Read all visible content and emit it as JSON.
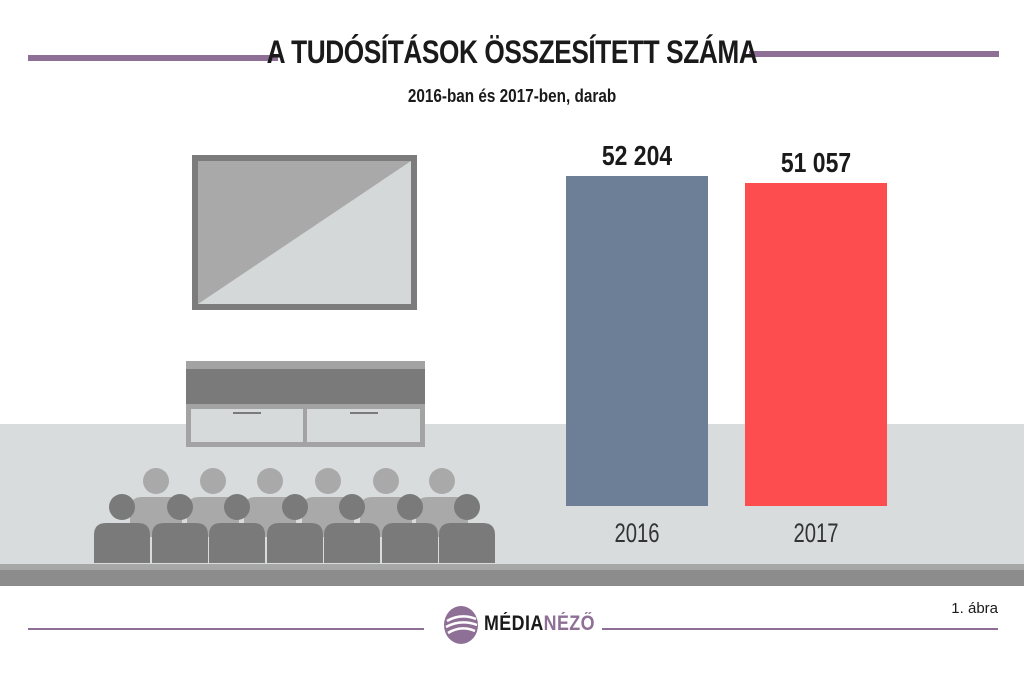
{
  "title": "A TUDÓSÍTÁSOK ÖSSZESÍTETT SZÁMA",
  "subtitle": "2016-ban és 2017-ben, darab",
  "colors": {
    "accent": "#8e6f95",
    "bar_2016": "#6c7f96",
    "bar_2017": "#fd4d4f",
    "floor": "#d8dcdc",
    "floor_edge": "#8c8c8c",
    "silhouette": "#7a7a7a"
  },
  "chart_data": {
    "type": "bar",
    "title": "A TUDÓSÍTÁSOK ÖSSZESÍTETT SZÁMA",
    "subtitle": "2016-ban és 2017-ben, darab",
    "categories": [
      "2016",
      "2017"
    ],
    "values": [
      52204,
      51057
    ],
    "value_labels": [
      "52 204",
      "51 057"
    ],
    "colors": [
      "#6c7f96",
      "#fd4d4f"
    ],
    "ylim": [
      0,
      52204
    ],
    "grid": false,
    "xlabel": "",
    "ylabel": ""
  },
  "logo": {
    "part1": "MÉDIA",
    "part2": "NÉZŐ",
    "icon": "medianezo-logo-icon"
  },
  "footnote": "1. ábra",
  "illustration": {
    "tv": "television-icon",
    "cabinet": "tv-cabinet-icon",
    "audience": "audience-silhouette-icon"
  }
}
